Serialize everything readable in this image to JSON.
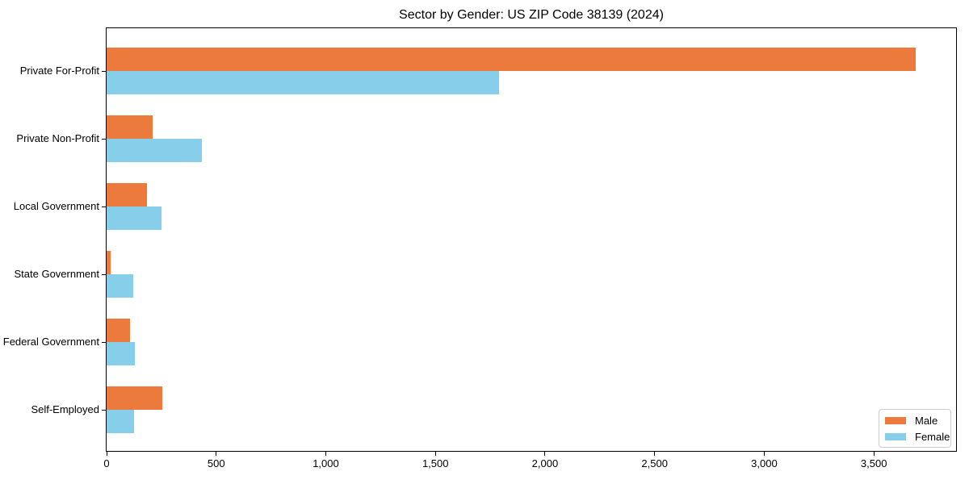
{
  "chart_data": {
    "type": "bar",
    "orientation": "horizontal",
    "title": "Sector by Gender: US ZIP Code 38139 (2024)",
    "categories": [
      "Private For-Profit",
      "Private Non-Profit",
      "Local Government",
      "State Government",
      "Federal Government",
      "Self-Employed"
    ],
    "series": [
      {
        "name": "Male",
        "color": "#EC7A3D",
        "values": [
          3690,
          210,
          185,
          20,
          105,
          255
        ]
      },
      {
        "name": "Female",
        "color": "#87CEEB",
        "values": [
          1790,
          435,
          250,
          120,
          130,
          125
        ]
      }
    ],
    "xlabel": "",
    "ylabel": "",
    "xlim": [
      0,
      3875
    ],
    "xticks": [
      0,
      500,
      1000,
      1500,
      2000,
      2500,
      3000,
      3500
    ],
    "xtick_labels": [
      "0",
      "500",
      "1,000",
      "1,500",
      "2,000",
      "2,500",
      "3,000",
      "3,500"
    ],
    "legend": {
      "position": "lower-right",
      "entries": [
        "Male",
        "Female"
      ]
    },
    "grid": false,
    "background_color": "#ffffff",
    "spine_color": "#000000"
  }
}
